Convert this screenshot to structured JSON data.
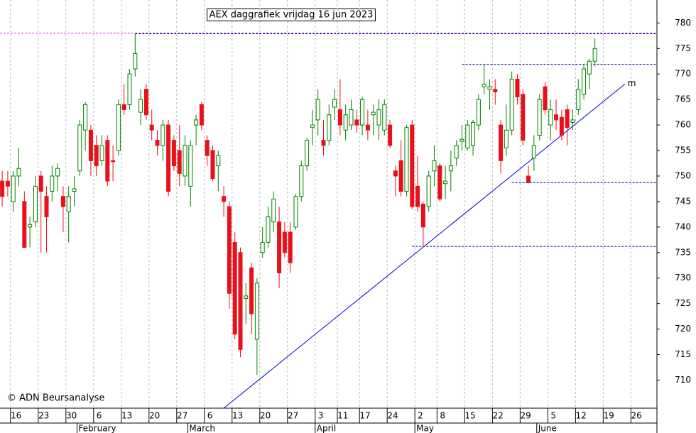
{
  "chart_data": {
    "type": "candlestick",
    "title": "AEX daggrafiek vrijdag 16 jun 2023",
    "copyright": "© ADN Beursanalyse",
    "up_color": "#008000",
    "down_color": "#e8101a",
    "open": [
      749,
      749,
      745,
      750,
      745,
      740,
      741,
      750,
      746,
      747,
      750,
      746,
      743,
      747,
      751,
      759,
      759,
      756,
      753,
      757,
      753,
      755,
      764,
      764,
      771,
      762.5,
      767,
      760,
      757,
      756,
      760,
      757,
      755,
      750,
      748,
      760,
      764,
      757,
      755,
      752,
      746,
      744,
      737,
      735,
      726,
      732,
      718,
      735,
      737,
      741,
      741,
      739,
      739,
      740,
      746,
      752,
      759.5,
      761,
      757,
      757,
      763.5,
      763,
      759,
      760,
      761,
      760,
      760,
      762,
      760,
      759,
      760,
      751,
      753,
      747,
      760,
      748,
      744.5,
      744,
      751,
      752,
      748.5,
      751,
      753.5,
      756.8,
      755.5,
      756,
      760,
      767.5,
      767,
      767,
      760,
      755.5,
      759,
      769,
      766,
      750,
      753.5,
      758,
      767.5,
      760,
      762,
      761.5,
      763,
      760.5,
      763,
      766,
      770,
      772.5
    ],
    "high": [
      751,
      751,
      751,
      755.5,
      747,
      742,
      750,
      751,
      748,
      752,
      752.5,
      748,
      748,
      750,
      761,
      764.5,
      760,
      758,
      758,
      758,
      756,
      765,
      768,
      771,
      778,
      767,
      768,
      763,
      759,
      761,
      761,
      758,
      760,
      758,
      757,
      762,
      764.5,
      758,
      756,
      755,
      748,
      745,
      739,
      736,
      729,
      733,
      730,
      740,
      744,
      747,
      744,
      741,
      741,
      746.5,
      753,
      757.5,
      763,
      767,
      761,
      764,
      767,
      769,
      764,
      765,
      763,
      765.5,
      763,
      764,
      765,
      765,
      761,
      752,
      757,
      760,
      761,
      754,
      745,
      751,
      756,
      752.5,
      752,
      755,
      757,
      760,
      761,
      761,
      766,
      772,
      769,
      769,
      761,
      764,
      770.5,
      770,
      767,
      752,
      758,
      766,
      768.5,
      765,
      765,
      763,
      764,
      763,
      769,
      772,
      773,
      777
    ],
    "low": [
      744,
      746,
      743,
      748,
      736,
      736,
      740,
      735,
      735,
      745,
      747,
      739,
      737,
      744,
      750,
      755,
      750,
      750,
      752,
      748,
      749,
      754,
      762,
      763,
      769.5,
      760,
      761,
      757,
      754,
      753,
      746,
      751,
      748,
      748,
      744,
      756,
      759,
      752,
      749,
      747,
      742,
      724,
      718,
      714.5,
      721,
      719,
      711,
      734,
      736,
      739,
      728,
      734,
      731,
      739.5,
      745,
      751,
      756,
      758,
      754,
      756,
      761,
      758,
      757,
      759,
      758.5,
      758,
      757,
      758,
      757,
      758,
      755.5,
      746,
      746,
      746,
      743.5,
      743,
      736,
      743,
      748,
      745,
      745.5,
      747,
      752,
      755,
      755,
      754,
      759,
      766,
      763,
      764,
      750.5,
      754,
      758,
      764,
      756,
      748.5,
      751,
      757,
      762,
      757,
      759,
      757,
      756,
      759,
      762,
      765,
      767,
      771.5
    ],
    "close": [
      746,
      748,
      750,
      751.5,
      736,
      740.5,
      748,
      747,
      742,
      750,
      751.5,
      744,
      746,
      747.5,
      760,
      764,
      753,
      752,
      756,
      749,
      752.8,
      764,
      763,
      770,
      774,
      765,
      762,
      759,
      756,
      760,
      747,
      752,
      750.5,
      756,
      756,
      761,
      760,
      754,
      749.5,
      754,
      745,
      727,
      719,
      716,
      726.5,
      723,
      729,
      737,
      742,
      745.5,
      731,
      735,
      733,
      746,
      752,
      757,
      760,
      765,
      756,
      762,
      765,
      760,
      762,
      763,
      760,
      765,
      759,
      762.5,
      763,
      764,
      756,
      750,
      747,
      759.5,
      744,
      744,
      740,
      750,
      753,
      745.5,
      749,
      752,
      756,
      757.2,
      760,
      760.5,
      765,
      768,
      767.5,
      766.5,
      753,
      759,
      769,
      765.5,
      757,
      748.8,
      756,
      765,
      763,
      763,
      761,
      758,
      759.5,
      761,
      767,
      771,
      772.5,
      775
    ],
    "xlim": [
      -0.4,
      118.2
    ],
    "ylim": [
      704.5,
      784.5
    ],
    "yticks": [
      710,
      715,
      720,
      725,
      730,
      735,
      740,
      745,
      750,
      755,
      760,
      765,
      770,
      775,
      780
    ],
    "xticks": [
      {
        "value": 2,
        "label": "16"
      },
      {
        "value": 7,
        "label": "23"
      },
      {
        "value": 12,
        "label": "30"
      },
      {
        "value": 17,
        "label": "6"
      },
      {
        "value": 22,
        "label": "13"
      },
      {
        "value": 27,
        "label": "20"
      },
      {
        "value": 32,
        "label": "27"
      },
      {
        "value": 37,
        "label": "6"
      },
      {
        "value": 42,
        "label": "13"
      },
      {
        "value": 47,
        "label": "20"
      },
      {
        "value": 52,
        "label": "27"
      },
      {
        "value": 57,
        "label": "3"
      },
      {
        "value": 61,
        "label": "11"
      },
      {
        "value": 65,
        "label": "17"
      },
      {
        "value": 70,
        "label": "24"
      },
      {
        "value": 75,
        "label": "2"
      },
      {
        "value": 79,
        "label": "8"
      },
      {
        "value": 84,
        "label": "15"
      },
      {
        "value": 89,
        "label": "22"
      },
      {
        "value": 94,
        "label": "29"
      },
      {
        "value": 99,
        "label": "5"
      },
      {
        "value": 104,
        "label": "12"
      },
      {
        "value": 109,
        "label": "19"
      },
      {
        "value": 114,
        "label": "26"
      }
    ],
    "months": [
      {
        "value": 14,
        "label": "February"
      },
      {
        "value": 34,
        "label": "March"
      },
      {
        "value": 57,
        "label": "April"
      },
      {
        "value": 75,
        "label": "May"
      },
      {
        "value": 97,
        "label": "June"
      }
    ],
    "hlines": [
      {
        "value": 778,
        "start": -0.4,
        "color": "#cc33cc"
      },
      {
        "value": 777.9,
        "start": 24,
        "color": "#000080"
      },
      {
        "value": 771.9,
        "start": 83,
        "color": "#000080"
      },
      {
        "value": 748.7,
        "start": 92,
        "color": "#000080"
      },
      {
        "value": 736.2,
        "start": 74,
        "color": "#000080"
      }
    ],
    "trendline": {
      "x": [
        40,
        112.4
      ],
      "y": [
        704.5,
        768
      ],
      "label": "m",
      "color": "#0000cc"
    }
  }
}
